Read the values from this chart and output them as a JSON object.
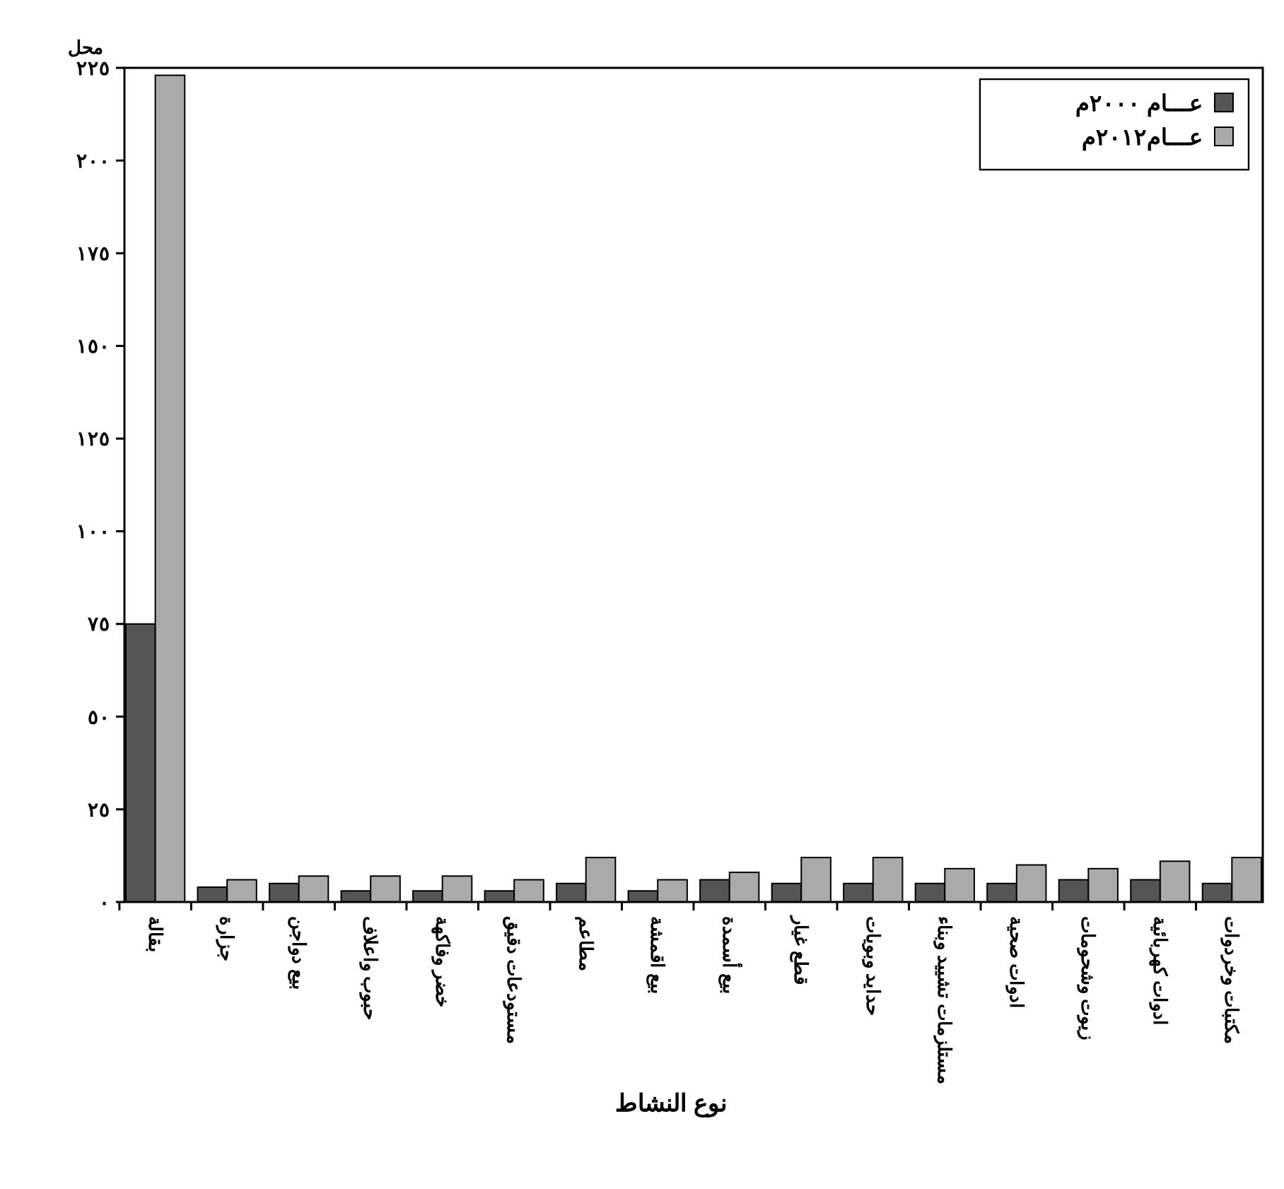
{
  "chart_data": {
    "type": "bar",
    "xlabel": "نوع النشاط",
    "ylabel": "محل",
    "categories": [
      "بقالة",
      "جزارة",
      "بيع دواجن",
      "حبوب واعلاف",
      "خضر وفاكهة",
      "مستودعات دقيق",
      "مطاعم",
      "بيع اقمشة",
      "بيع أسمدة",
      "قطع غيار",
      "حدايد وبويات",
      "مستلزمات تشييد وبناء",
      "ادوات صحية",
      "زيوت وشحومات",
      "ادوات كهربائية",
      "مكتبات وخردوات"
    ],
    "series": [
      {
        "name": "عـــام ٢٠٠٠م",
        "color": "#555555",
        "values": [
          75,
          4,
          5,
          3,
          3,
          3,
          5,
          3,
          6,
          5,
          5,
          5,
          5,
          6,
          6,
          5
        ]
      },
      {
        "name": "عـــام٢٠١٢م",
        "color": "#aaaaaa",
        "values": [
          223,
          6,
          7,
          7,
          7,
          6,
          12,
          6,
          8,
          12,
          12,
          9,
          10,
          9,
          11,
          12
        ]
      }
    ],
    "ylim": [
      0,
      225
    ],
    "yticks": [
      {
        "value": 0,
        "label": "٠"
      },
      {
        "value": 25,
        "label": "٢٥"
      },
      {
        "value": 50,
        "label": "٥٠"
      },
      {
        "value": 75,
        "label": "٧٥"
      },
      {
        "value": 100,
        "label": "١٠٠"
      },
      {
        "value": 125,
        "label": "١٢٥"
      },
      {
        "value": 150,
        "label": "١٥٠"
      },
      {
        "value": 175,
        "label": "١٧٥"
      },
      {
        "value": 200,
        "label": "٢٠٠"
      },
      {
        "value": 225,
        "label": "٢٢٥"
      }
    ],
    "grid": false,
    "legend": "top right"
  }
}
